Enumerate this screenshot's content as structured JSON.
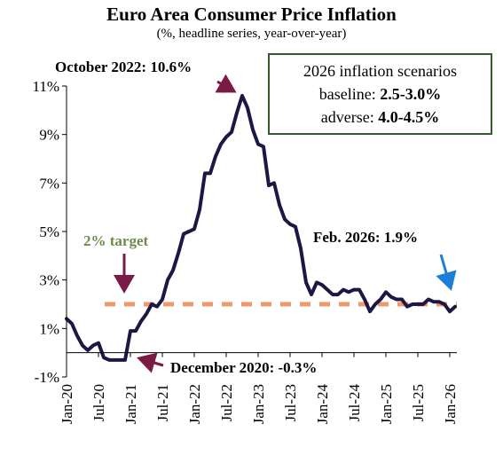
{
  "title": "Euro Area Consumer Price Inflation",
  "subtitle": "(%, headline series, year-over-year)",
  "scenarios": {
    "heading": "2026 inflation scenarios",
    "baseline_label": "baseline: ",
    "baseline_value": "2.5-3.0%",
    "adverse_label": "adverse: ",
    "adverse_value": "4.0-4.5%",
    "border_color": "#375a2a"
  },
  "annotations": {
    "peak": "October 2022: 10.6%",
    "trough": "December 2020: -0.3%",
    "latest": "Feb. 2026: 1.9%",
    "target": "2% target"
  },
  "colors": {
    "series": "#1c1846",
    "target": "#f0976b",
    "target_label": "#6f8b4c",
    "arrow_dark": "#7a1a45",
    "arrow_blue": "#1c7fd6"
  },
  "chart_data": {
    "type": "line",
    "title": "Euro Area Consumer Price Inflation",
    "subtitle": "(%, headline series, year-over-year)",
    "ylim": [
      -1,
      11
    ],
    "ytick_values": [
      11,
      9,
      7,
      5,
      3,
      1,
      -1
    ],
    "ytick_labels": [
      "11%",
      "9%",
      "7%",
      "5%",
      "3%",
      "1%",
      "-1%"
    ],
    "xtick_labels": [
      "Jan-20",
      "Jul-20",
      "Jan-21",
      "Jul-21",
      "Jan-22",
      "Jul-22",
      "Jan-23",
      "Jul-23",
      "Jan-24",
      "Jul-24",
      "Jan-25",
      "Jul-25",
      "Jan-26"
    ],
    "xtick_index": [
      0,
      6,
      12,
      18,
      24,
      30,
      36,
      42,
      48,
      54,
      60,
      66,
      72
    ],
    "target": 2,
    "series": [
      {
        "values": [
          1.4,
          1.2,
          0.7,
          0.3,
          0.1,
          0.3,
          0.4,
          -0.2,
          -0.3,
          -0.3,
          -0.3,
          -0.3,
          0.9,
          0.9,
          1.3,
          1.6,
          2.0,
          1.9,
          2.2,
          3.0,
          3.4,
          4.1,
          4.9,
          5.0,
          5.1,
          5.9,
          7.4,
          7.4,
          8.1,
          8.6,
          8.9,
          9.1,
          9.9,
          10.6,
          10.1,
          9.2,
          8.6,
          8.5,
          6.9,
          7.0,
          6.1,
          5.5,
          5.3,
          5.2,
          4.3,
          2.9,
          2.4,
          2.9,
          2.8,
          2.6,
          2.4,
          2.4,
          2.6,
          2.5,
          2.6,
          2.6,
          2.2,
          1.7,
          2.0,
          2.2,
          2.5,
          2.3,
          2.2,
          2.2,
          1.9,
          2.0,
          2.0,
          2.0,
          2.2,
          2.1,
          2.1,
          2.0,
          1.7,
          1.9
        ]
      }
    ]
  }
}
